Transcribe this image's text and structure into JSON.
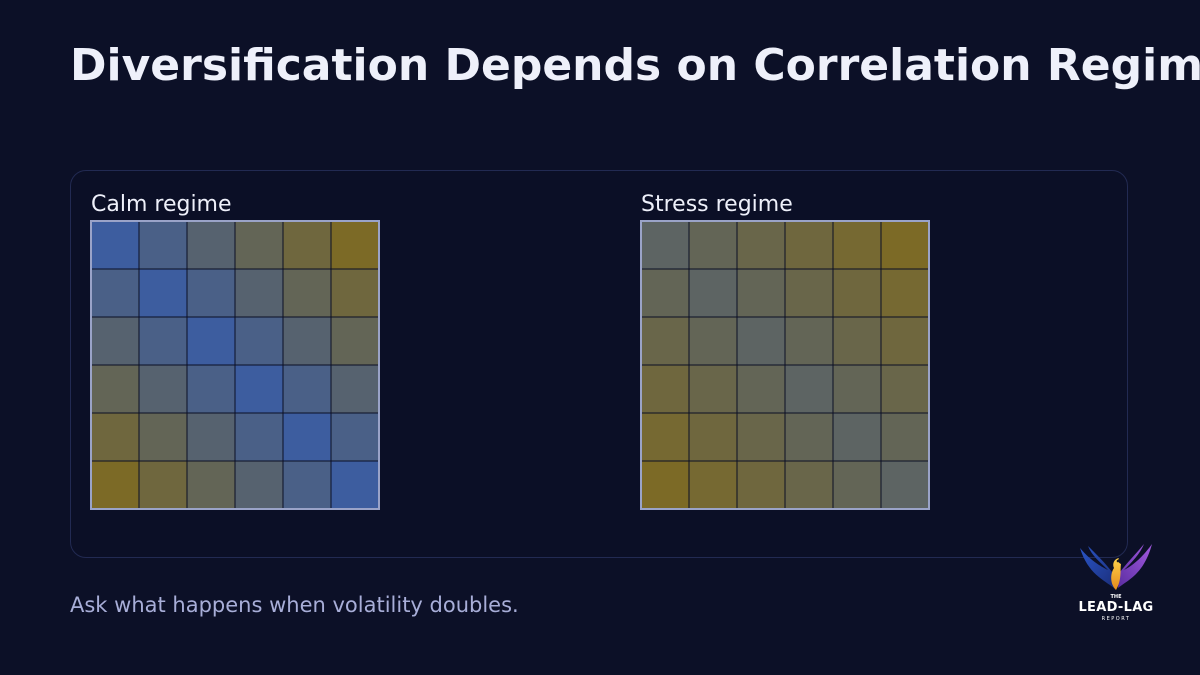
{
  "title": "Diversification Depends on Correlation Regime",
  "caption": "Ask what happens when volatility doubles.",
  "logo": {
    "the": "THE",
    "name": "LEAD-LAG",
    "sub": "REPORT"
  },
  "colors": {
    "background": "#0c1027",
    "low_correlation": "#3d5d9f",
    "high_correlation": "#7c6a26",
    "grid_line": "#0b0f24",
    "frame": "#9aa3c8"
  },
  "chart_data": [
    {
      "type": "heatmap",
      "title": "Calm regime",
      "color_scale": "blue (low) to olive (high)",
      "values": [
        [
          0.0,
          0.2,
          0.4,
          0.6,
          0.8,
          1.0
        ],
        [
          0.2,
          0.0,
          0.2,
          0.4,
          0.6,
          0.8
        ],
        [
          0.4,
          0.2,
          0.0,
          0.2,
          0.4,
          0.6
        ],
        [
          0.6,
          0.4,
          0.2,
          0.0,
          0.2,
          0.4
        ],
        [
          0.8,
          0.6,
          0.4,
          0.2,
          0.0,
          0.2
        ],
        [
          1.0,
          0.8,
          0.6,
          0.4,
          0.2,
          0.0
        ]
      ]
    },
    {
      "type": "heatmap",
      "title": "Stress regime",
      "color_scale": "blue (low) to olive (high)",
      "values": [
        [
          0.5,
          0.6,
          0.7,
          0.8,
          0.9,
          1.0
        ],
        [
          0.6,
          0.5,
          0.6,
          0.7,
          0.8,
          0.9
        ],
        [
          0.7,
          0.6,
          0.5,
          0.6,
          0.7,
          0.8
        ],
        [
          0.8,
          0.7,
          0.6,
          0.5,
          0.6,
          0.7
        ],
        [
          0.9,
          0.8,
          0.7,
          0.6,
          0.5,
          0.6
        ],
        [
          1.0,
          0.9,
          0.8,
          0.7,
          0.6,
          0.5
        ]
      ]
    }
  ]
}
